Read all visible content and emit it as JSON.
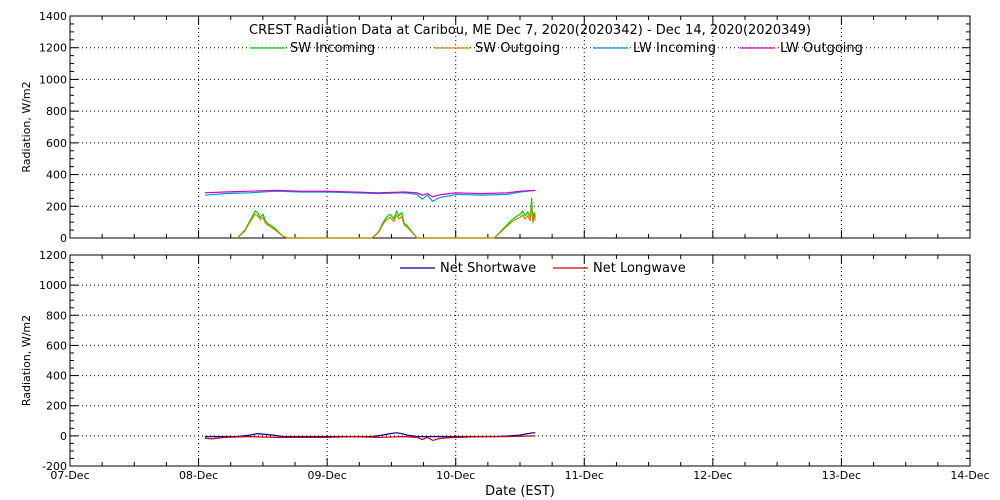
{
  "chart_data": [
    {
      "type": "line",
      "title": "CREST Radiation Data at Caribou, ME   Dec  7, 2020(2020342) - Dec 14, 2020(2020349)",
      "xlabel": "",
      "ylabel": "Radiation, W/m2",
      "xlim": [
        "07-Dec",
        "14-Dec"
      ],
      "ylim": [
        0,
        1400
      ],
      "yticks": [
        0,
        200,
        400,
        600,
        800,
        1000,
        1200,
        1400
      ],
      "xticks": [
        "07-Dec",
        "08-Dec",
        "09-Dec",
        "10-Dec",
        "11-Dec",
        "12-Dec",
        "13-Dec",
        "14-Dec"
      ],
      "grid": true,
      "legend_position": "top",
      "series": [
        {
          "name": "SW Incoming",
          "color": "#00cc00",
          "x": [
            1.3,
            1.36,
            1.4,
            1.44,
            1.46,
            1.48,
            1.5,
            1.52,
            1.54,
            1.56,
            1.58,
            1.62,
            1.66,
            1.7,
            2.35,
            2.4,
            2.43,
            2.46,
            2.49,
            2.52,
            2.54,
            2.56,
            2.58,
            2.6,
            2.62,
            2.66,
            2.7,
            3.3,
            3.36,
            3.42,
            3.46,
            3.5,
            3.52,
            3.54,
            3.56,
            3.58,
            3.59,
            3.6,
            3.61,
            3.62
          ],
          "y": [
            0,
            50,
            110,
            170,
            160,
            130,
            150,
            110,
            90,
            80,
            70,
            40,
            10,
            0,
            0,
            40,
            90,
            130,
            150,
            120,
            170,
            140,
            160,
            90,
            80,
            40,
            0,
            0,
            50,
            100,
            130,
            150,
            170,
            140,
            165,
            130,
            250,
            110,
            160,
            130
          ]
        },
        {
          "name": "SW Outgoing",
          "color": "#cc8800",
          "x": [
            1.3,
            1.36,
            1.4,
            1.44,
            1.46,
            1.48,
            1.5,
            1.52,
            1.54,
            1.56,
            1.58,
            1.62,
            1.66,
            1.7,
            2.35,
            2.4,
            2.43,
            2.46,
            2.49,
            2.52,
            2.54,
            2.56,
            2.58,
            2.6,
            2.62,
            2.66,
            2.7,
            3.3,
            3.36,
            3.42,
            3.46,
            3.5,
            3.52,
            3.54,
            3.56,
            3.58,
            3.59,
            3.6,
            3.61,
            3.62
          ],
          "y": [
            0,
            45,
            100,
            150,
            140,
            115,
            130,
            95,
            80,
            70,
            60,
            35,
            8,
            0,
            0,
            35,
            80,
            115,
            130,
            105,
            145,
            120,
            135,
            80,
            70,
            35,
            0,
            0,
            45,
            90,
            115,
            130,
            145,
            120,
            140,
            110,
            210,
            95,
            135,
            110
          ]
        },
        {
          "name": "LW Incoming",
          "color": "#0099cc",
          "x": [
            1.05,
            1.2,
            1.4,
            1.6,
            1.8,
            2.0,
            2.2,
            2.4,
            2.6,
            2.7,
            2.74,
            2.78,
            2.82,
            2.86,
            2.9,
            2.95,
            3.0,
            3.2,
            3.4,
            3.5,
            3.62
          ],
          "y": [
            270,
            280,
            285,
            295,
            290,
            290,
            285,
            280,
            285,
            275,
            245,
            270,
            230,
            250,
            260,
            265,
            275,
            270,
            275,
            290,
            300
          ]
        },
        {
          "name": "LW Outgoing",
          "color": "#cc00cc",
          "x": [
            1.05,
            1.2,
            1.4,
            1.6,
            1.8,
            2.0,
            2.2,
            2.4,
            2.6,
            2.7,
            2.74,
            2.78,
            2.82,
            2.86,
            2.9,
            2.95,
            3.0,
            3.2,
            3.4,
            3.5,
            3.62
          ],
          "y": [
            285,
            290,
            295,
            300,
            295,
            295,
            290,
            285,
            290,
            285,
            270,
            280,
            260,
            270,
            275,
            280,
            285,
            280,
            285,
            295,
            300
          ]
        }
      ]
    },
    {
      "type": "line",
      "title": "",
      "xlabel": "Date (EST)",
      "ylabel": "Radiation, W/m2",
      "xlim": [
        "07-Dec",
        "14-Dec"
      ],
      "ylim": [
        -200,
        1200
      ],
      "yticks": [
        -200,
        0,
        200,
        400,
        600,
        800,
        1000,
        1200
      ],
      "xticks": [
        "07-Dec",
        "08-Dec",
        "09-Dec",
        "10-Dec",
        "11-Dec",
        "12-Dec",
        "13-Dec",
        "14-Dec"
      ],
      "grid": true,
      "legend_position": "top",
      "series": [
        {
          "name": "Net Shortwave",
          "color": "#000099",
          "x": [
            1.05,
            1.3,
            1.4,
            1.46,
            1.52,
            1.58,
            1.66,
            1.8,
            2.2,
            2.35,
            2.43,
            2.49,
            2.54,
            2.58,
            2.62,
            2.7,
            3.0,
            3.3,
            3.42,
            3.5,
            3.56,
            3.6,
            3.62
          ],
          "y": [
            -5,
            -5,
            5,
            15,
            10,
            5,
            -5,
            -5,
            -5,
            -5,
            5,
            15,
            20,
            15,
            5,
            -5,
            -5,
            -5,
            0,
            5,
            15,
            20,
            20
          ]
        },
        {
          "name": "Net Longwave",
          "color": "#cc0000",
          "x": [
            1.05,
            1.1,
            1.2,
            1.4,
            1.6,
            1.8,
            2.0,
            2.2,
            2.4,
            2.6,
            2.7,
            2.74,
            2.78,
            2.82,
            2.86,
            2.9,
            3.0,
            3.2,
            3.4,
            3.62
          ],
          "y": [
            -15,
            -20,
            -10,
            -5,
            -10,
            -10,
            -10,
            -5,
            -10,
            -5,
            -10,
            -25,
            -10,
            -30,
            -20,
            -15,
            -10,
            -5,
            -5,
            0
          ]
        }
      ]
    }
  ]
}
